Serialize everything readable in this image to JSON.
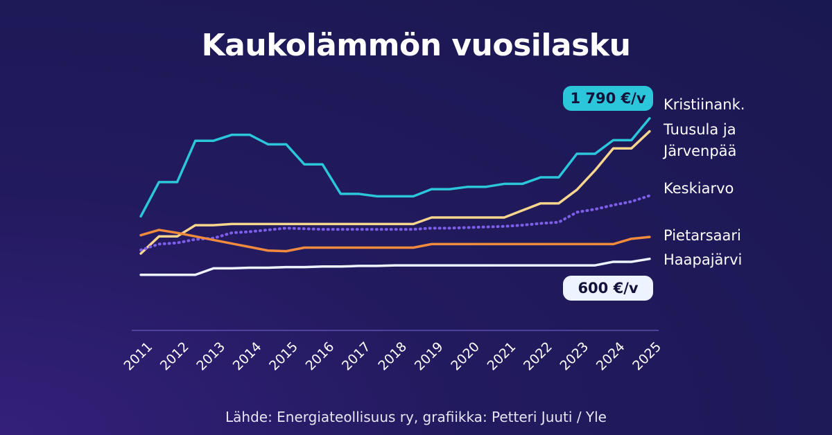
{
  "chart_data": {
    "type": "line",
    "title": "Kaukolämmön vuosilasku",
    "source": "Lähde: Energiateollisuus ry, grafiikka: Petteri Juuti / Yle",
    "x": [
      2011,
      2011.5,
      2012,
      2012.5,
      2013,
      2013.5,
      2014,
      2014.5,
      2015,
      2015.5,
      2016,
      2016.5,
      2017,
      2017.5,
      2018,
      2018.5,
      2019,
      2019.5,
      2020,
      2020.5,
      2021,
      2021.5,
      2022,
      2022.5,
      2023,
      2023.5,
      2024,
      2024.5,
      2025
    ],
    "xlim": [
      2010.75,
      2025.25
    ],
    "xticks": [
      2011,
      2012,
      2013,
      2014,
      2015,
      2016,
      2017,
      2018,
      2019,
      2020,
      2021,
      2022,
      2023,
      2024,
      2025
    ],
    "ylim": [
      0,
      2000
    ],
    "series": [
      {
        "name": "Kristiinank.",
        "color": "#2cc6da",
        "dashed": false,
        "end_label": "1 790 €/v",
        "values": [
          960,
          1250,
          1250,
          1600,
          1600,
          1650,
          1650,
          1570,
          1570,
          1400,
          1400,
          1150,
          1150,
          1130,
          1130,
          1130,
          1190,
          1190,
          1210,
          1210,
          1235,
          1235,
          1290,
          1290,
          1490,
          1490,
          1605,
          1605,
          1790
        ]
      },
      {
        "name": "Tuusula ja Järvenpää",
        "color": "#f8d68e",
        "dashed": false,
        "values": [
          645,
          790,
          790,
          885,
          885,
          895,
          895,
          895,
          895,
          895,
          895,
          895,
          895,
          895,
          895,
          895,
          950,
          950,
          950,
          950,
          950,
          1010,
          1070,
          1070,
          1185,
          1350,
          1535,
          1535,
          1680
        ]
      },
      {
        "name": "Keskiarvo",
        "color": "#7d5ee8",
        "dashed": true,
        "values": [
          675,
          725,
          735,
          765,
          775,
          820,
          830,
          845,
          860,
          855,
          850,
          850,
          850,
          850,
          850,
          850,
          860,
          860,
          865,
          870,
          875,
          885,
          900,
          910,
          995,
          1020,
          1055,
          1085,
          1135
        ]
      },
      {
        "name": "Pietarsaari",
        "color": "#f08b3d",
        "dashed": false,
        "values": [
          800,
          845,
          820,
          790,
          760,
          730,
          700,
          670,
          665,
          695,
          695,
          695,
          695,
          695,
          695,
          695,
          725,
          725,
          725,
          725,
          725,
          725,
          725,
          725,
          725,
          725,
          725,
          770,
          785
        ]
      },
      {
        "name": "Haapajärvi",
        "color": "#eef4ff",
        "dashed": false,
        "end_label": "600 €/v",
        "values": [
          465,
          465,
          465,
          465,
          520,
          520,
          525,
          525,
          530,
          530,
          535,
          535,
          540,
          540,
          545,
          545,
          545,
          545,
          545,
          545,
          545,
          545,
          545,
          545,
          545,
          545,
          575,
          575,
          600
        ]
      }
    ]
  }
}
